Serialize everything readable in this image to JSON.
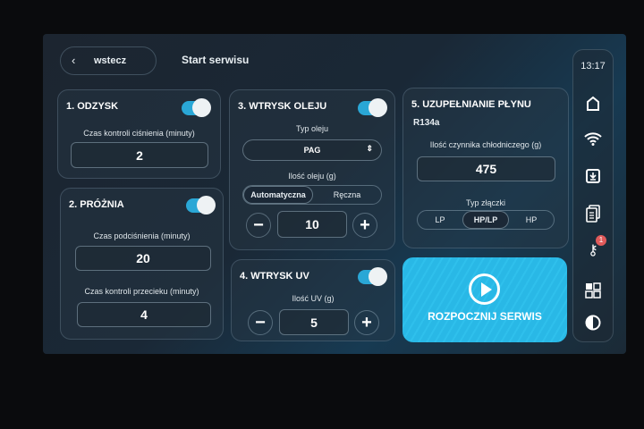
{
  "header": {
    "back_label": "wstecz",
    "back_icon": "chevron-left-icon",
    "title": "Start serwisu",
    "time": "13:17"
  },
  "card1": {
    "title": "1. ODZYSK",
    "enabled": true,
    "label": "Czas kontroli ciśnienia (minuty)",
    "value": "2"
  },
  "card2": {
    "title": "2. PRÓŻNIA",
    "enabled": true,
    "label1": "Czas podciśnienia (minuty)",
    "value1": "20",
    "label2": "Czas kontroli przecieku (minuty)",
    "value2": "4"
  },
  "card3": {
    "title": "3. WTRYSK OLEJU",
    "enabled": true,
    "oil_type_label": "Typ oleju",
    "oil_type": "PAG",
    "amount_label": "Ilość oleju (g)",
    "modes": [
      "Automatyczna",
      "Ręczna"
    ],
    "selected_mode": "Automatyczna",
    "value": "10",
    "minus": "−",
    "plus": "+"
  },
  "card4": {
    "title": "4. WTRYSK UV",
    "enabled": true,
    "label": "Ilość UV (g)",
    "value": "5",
    "minus": "−",
    "plus": "+"
  },
  "card5": {
    "title": "5. UZUPEŁNIANIE PŁYNU",
    "refrigerant": "R134a",
    "amount_label": "Ilość czynnika chłodniczego (g)",
    "value": "475",
    "coupler_label": "Typ złączki",
    "couplers": [
      "LP",
      "HP/LP",
      "HP"
    ],
    "selected_coupler": "HP/LP"
  },
  "start": {
    "label": "ROZPOCZNIJ SERWIS",
    "color": "#29b8e6"
  },
  "sidebar": {
    "icons": [
      "home-icon",
      "wifi-icon",
      "download-icon",
      "documents-icon",
      "keys-icon",
      "grid-icon",
      "contrast-icon"
    ],
    "keys_badge": "1"
  },
  "colors": {
    "accent": "#2aa7d6",
    "badge": "#e05a5a"
  }
}
